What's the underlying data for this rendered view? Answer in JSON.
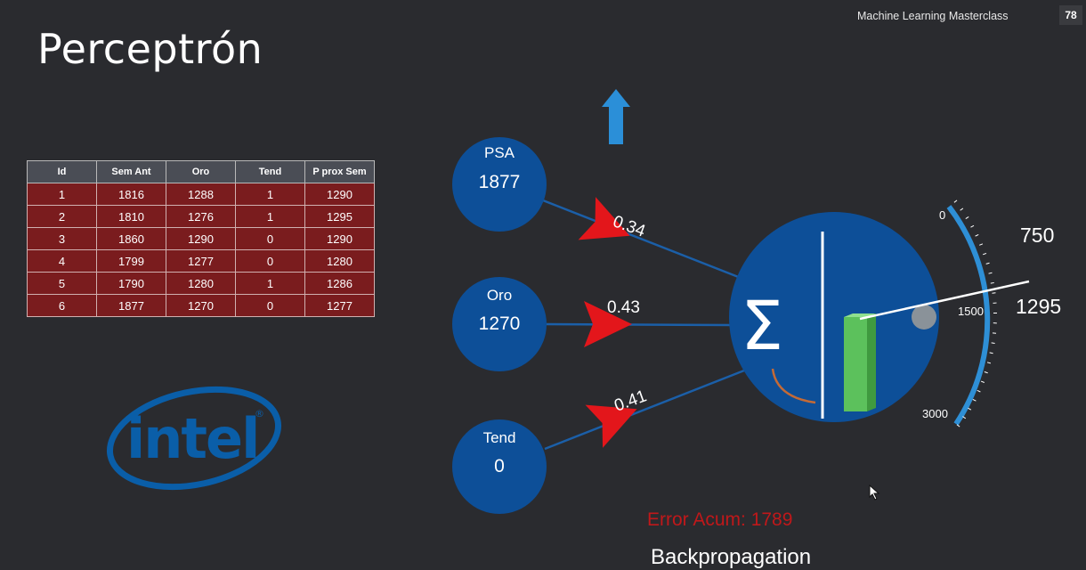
{
  "header": {
    "course": "Machine Learning Masterclass",
    "slide_number": "78"
  },
  "title": "Perceptrón",
  "table": {
    "columns": [
      "Id",
      "Sem Ant",
      "Oro",
      "Tend",
      "P prox Sem"
    ],
    "rows": [
      [
        "1",
        "1816",
        "1288",
        "1",
        "1290"
      ],
      [
        "2",
        "1810",
        "1276",
        "1",
        "1295"
      ],
      [
        "3",
        "1860",
        "1290",
        "0",
        "1290"
      ],
      [
        "4",
        "1799",
        "1277",
        "0",
        "1280"
      ],
      [
        "5",
        "1790",
        "1280",
        "1",
        "1286"
      ],
      [
        "6",
        "1877",
        "1270",
        "0",
        "1277"
      ]
    ]
  },
  "logo": {
    "text": "intel",
    "color": "#0a5ea8"
  },
  "inputs": [
    {
      "name": "PSA",
      "value": "1877"
    },
    {
      "name": "Oro",
      "value": "1270"
    },
    {
      "name": "Tend",
      "value": "0"
    }
  ],
  "weights": [
    "0.34",
    "0.43",
    "0.41"
  ],
  "neuron": {
    "symbol": "Σ"
  },
  "gauge": {
    "tick_top": "0",
    "tick_mid": "1500",
    "tick_bottom": "3000",
    "target": "750",
    "output": "1295"
  },
  "error_text": "Error Acum: 1789",
  "caption": "Backpropagation",
  "colors": {
    "node": "#0d4f98",
    "arrow": "#e3161b",
    "gauge": "#2e8fd6",
    "bar": "#5cc15c",
    "error": "#c0181a",
    "up_arrow": "#2b8fd8"
  },
  "icons": {
    "up": "up-arrow-icon",
    "cursor": "mouse-cursor-icon"
  }
}
